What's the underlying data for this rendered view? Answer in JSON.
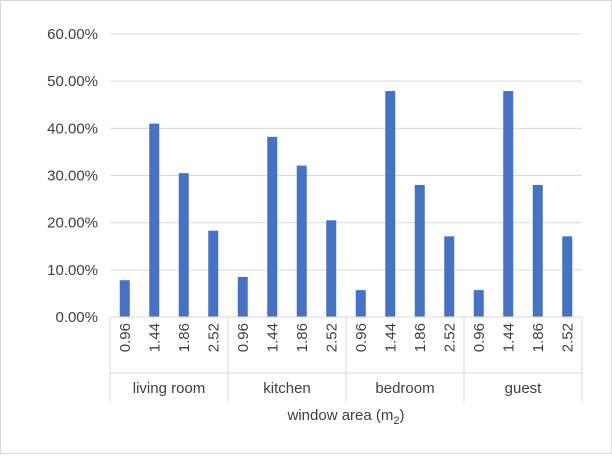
{
  "chart_data": {
    "type": "bar",
    "title": "",
    "xlabel": "window area (m",
    "xlabel_sub": "2",
    "xlabel_close": ")",
    "ylabel": "",
    "ylim": [
      0,
      0.6
    ],
    "y_ticks": [
      "0.00%",
      "10.00%",
      "20.00%",
      "30.00%",
      "40.00%",
      "50.00%",
      "60.00%"
    ],
    "groups": [
      "living room",
      "kitchen",
      "bedroom",
      "guest"
    ],
    "subcategories": [
      "0.96",
      "1.44",
      "1.86",
      "2.52"
    ],
    "series": [
      {
        "values": [
          0.078,
          0.41,
          0.305,
          0.183,
          0.085,
          0.382,
          0.321,
          0.205,
          0.057,
          0.479,
          0.28,
          0.171,
          0.057,
          0.479,
          0.28,
          0.171
        ]
      }
    ],
    "bar_color": "#4472c4",
    "gridlines": true,
    "legend": "none"
  }
}
